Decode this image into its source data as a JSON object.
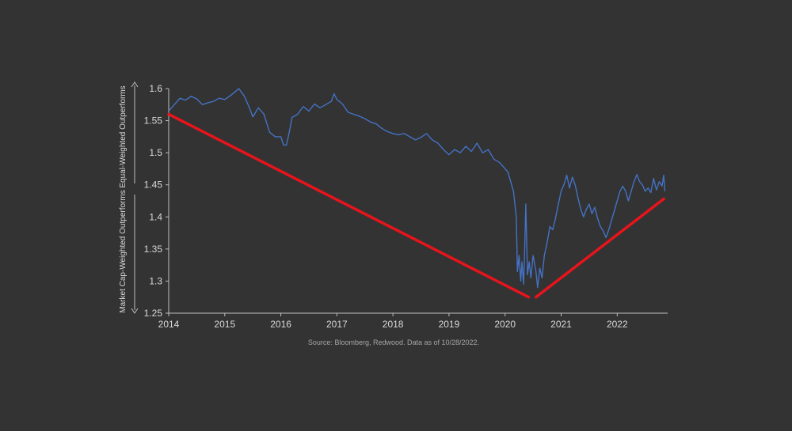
{
  "chart_data": {
    "type": "line",
    "source_note": "Source: Bloomberg, Redwood. Data as of 10/28/2022.",
    "ylabel_upper": "Equal-Weighted Outperforms",
    "ylabel_lower": "Market Cap-Weighted Outperforms",
    "ylim": [
      1.25,
      1.6
    ],
    "y_ticks": [
      "1.25",
      "1.3",
      "1.35",
      "1.4",
      "1.45",
      "1.5",
      "1.55",
      "1.6"
    ],
    "x_ticks": [
      "2014",
      "2015",
      "2016",
      "2017",
      "2018",
      "2019",
      "2020",
      "2021",
      "2022"
    ],
    "xlim": [
      2014.0,
      2022.9
    ],
    "grid": false,
    "colors": {
      "background": "#333333",
      "series": "#4472C4",
      "trend": "#E8141C",
      "axis": "#BFBFBF",
      "text": "#D9D9D9",
      "note": "#A6A6A6"
    },
    "series": [
      {
        "values": [
          [
            2014.0,
            1.565
          ],
          [
            2014.1,
            1.575
          ],
          [
            2014.2,
            1.585
          ],
          [
            2014.3,
            1.582
          ],
          [
            2014.4,
            1.588
          ],
          [
            2014.5,
            1.584
          ],
          [
            2014.6,
            1.575
          ],
          [
            2014.7,
            1.578
          ],
          [
            2014.8,
            1.58
          ],
          [
            2014.9,
            1.585
          ],
          [
            2015.0,
            1.583
          ],
          [
            2015.1,
            1.589
          ],
          [
            2015.2,
            1.596
          ],
          [
            2015.25,
            1.6
          ],
          [
            2015.35,
            1.588
          ],
          [
            2015.45,
            1.568
          ],
          [
            2015.5,
            1.556
          ],
          [
            2015.6,
            1.57
          ],
          [
            2015.7,
            1.56
          ],
          [
            2015.8,
            1.532
          ],
          [
            2015.9,
            1.525
          ],
          [
            2016.0,
            1.525
          ],
          [
            2016.05,
            1.512
          ],
          [
            2016.1,
            1.512
          ],
          [
            2016.15,
            1.532
          ],
          [
            2016.2,
            1.555
          ],
          [
            2016.3,
            1.56
          ],
          [
            2016.4,
            1.572
          ],
          [
            2016.5,
            1.565
          ],
          [
            2016.6,
            1.576
          ],
          [
            2016.7,
            1.57
          ],
          [
            2016.8,
            1.575
          ],
          [
            2016.9,
            1.58
          ],
          [
            2016.95,
            1.592
          ],
          [
            2017.0,
            1.583
          ],
          [
            2017.1,
            1.576
          ],
          [
            2017.2,
            1.563
          ],
          [
            2017.3,
            1.56
          ],
          [
            2017.4,
            1.557
          ],
          [
            2017.5,
            1.553
          ],
          [
            2017.6,
            1.548
          ],
          [
            2017.7,
            1.545
          ],
          [
            2017.8,
            1.538
          ],
          [
            2017.9,
            1.533
          ],
          [
            2018.0,
            1.53
          ],
          [
            2018.1,
            1.528
          ],
          [
            2018.2,
            1.53
          ],
          [
            2018.3,
            1.525
          ],
          [
            2018.4,
            1.52
          ],
          [
            2018.5,
            1.524
          ],
          [
            2018.6,
            1.53
          ],
          [
            2018.7,
            1.52
          ],
          [
            2018.8,
            1.515
          ],
          [
            2018.9,
            1.505
          ],
          [
            2019.0,
            1.497
          ],
          [
            2019.1,
            1.505
          ],
          [
            2019.2,
            1.5
          ],
          [
            2019.3,
            1.51
          ],
          [
            2019.4,
            1.502
          ],
          [
            2019.5,
            1.515
          ],
          [
            2019.6,
            1.5
          ],
          [
            2019.7,
            1.505
          ],
          [
            2019.8,
            1.49
          ],
          [
            2019.9,
            1.485
          ],
          [
            2020.0,
            1.475
          ],
          [
            2020.05,
            1.47
          ],
          [
            2020.1,
            1.455
          ],
          [
            2020.15,
            1.44
          ],
          [
            2020.2,
            1.4
          ],
          [
            2020.22,
            1.315
          ],
          [
            2020.25,
            1.34
          ],
          [
            2020.28,
            1.3
          ],
          [
            2020.3,
            1.33
          ],
          [
            2020.33,
            1.295
          ],
          [
            2020.35,
            1.35
          ],
          [
            2020.37,
            1.42
          ],
          [
            2020.4,
            1.31
          ],
          [
            2020.43,
            1.33
          ],
          [
            2020.46,
            1.305
          ],
          [
            2020.5,
            1.34
          ],
          [
            2020.55,
            1.315
          ],
          [
            2020.58,
            1.29
          ],
          [
            2020.62,
            1.32
          ],
          [
            2020.66,
            1.305
          ],
          [
            2020.7,
            1.34
          ],
          [
            2020.75,
            1.36
          ],
          [
            2020.8,
            1.385
          ],
          [
            2020.85,
            1.38
          ],
          [
            2020.9,
            1.398
          ],
          [
            2020.95,
            1.42
          ],
          [
            2021.0,
            1.44
          ],
          [
            2021.05,
            1.45
          ],
          [
            2021.1,
            1.465
          ],
          [
            2021.15,
            1.445
          ],
          [
            2021.2,
            1.462
          ],
          [
            2021.25,
            1.45
          ],
          [
            2021.3,
            1.43
          ],
          [
            2021.35,
            1.412
          ],
          [
            2021.4,
            1.4
          ],
          [
            2021.45,
            1.412
          ],
          [
            2021.5,
            1.42
          ],
          [
            2021.55,
            1.405
          ],
          [
            2021.6,
            1.415
          ],
          [
            2021.65,
            1.398
          ],
          [
            2021.7,
            1.385
          ],
          [
            2021.75,
            1.378
          ],
          [
            2021.8,
            1.368
          ],
          [
            2021.85,
            1.38
          ],
          [
            2021.9,
            1.395
          ],
          [
            2021.95,
            1.41
          ],
          [
            2022.0,
            1.425
          ],
          [
            2022.05,
            1.44
          ],
          [
            2022.1,
            1.448
          ],
          [
            2022.15,
            1.44
          ],
          [
            2022.2,
            1.425
          ],
          [
            2022.25,
            1.44
          ],
          [
            2022.3,
            1.455
          ],
          [
            2022.35,
            1.466
          ],
          [
            2022.4,
            1.455
          ],
          [
            2022.45,
            1.45
          ],
          [
            2022.5,
            1.44
          ],
          [
            2022.55,
            1.445
          ],
          [
            2022.6,
            1.438
          ],
          [
            2022.65,
            1.46
          ],
          [
            2022.7,
            1.442
          ],
          [
            2022.75,
            1.455
          ],
          [
            2022.8,
            1.448
          ],
          [
            2022.83,
            1.465
          ],
          [
            2022.85,
            1.44
          ]
        ]
      }
    ],
    "trendlines": [
      {
        "x": [
          2014.0,
          2020.42
        ],
        "y": [
          1.56,
          1.275
        ]
      },
      {
        "x": [
          2020.55,
          2022.83
        ],
        "y": [
          1.275,
          1.428
        ]
      }
    ]
  }
}
